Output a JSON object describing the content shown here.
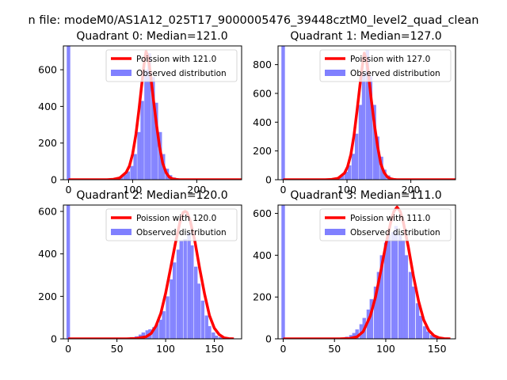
{
  "figure": {
    "suptitle": "n file: modeM0/AS1A12_025T17_9000005476_39448cztM0_level2_quad_clean"
  },
  "colors": {
    "hist": "#8080ff",
    "poisson": "#ff0000",
    "axis": "#000000",
    "background": "#ffffff"
  },
  "chart_data": [
    {
      "type": "bar",
      "title": "Quadrant 0: Median=121.0",
      "xlim": [
        -8,
        270
      ],
      "ylim": [
        0,
        730
      ],
      "xticks": [
        0,
        100,
        200
      ],
      "yticks": [
        0,
        200,
        400,
        600
      ],
      "legend": {
        "position": "top-right",
        "entries": [
          "Poission with 121.0",
          "Observed distribution"
        ]
      },
      "median": 121.0,
      "bin_width": 5.5,
      "zero_bar": 730,
      "hist_x": [
        60,
        66,
        71,
        77,
        82,
        88,
        93,
        99,
        104,
        110,
        115,
        121,
        126,
        132,
        137,
        143,
        148,
        154,
        159,
        165,
        170,
        176,
        181,
        187,
        192
      ],
      "hist_y": [
        3,
        5,
        8,
        12,
        18,
        28,
        45,
        75,
        140,
        260,
        430,
        600,
        690,
        560,
        420,
        260,
        140,
        60,
        25,
        12,
        8,
        5,
        3,
        2,
        1
      ],
      "poisson_x": [
        0,
        60,
        70,
        80,
        90,
        95,
        100,
        105,
        110,
        115,
        118,
        121,
        124,
        127,
        132,
        137,
        142,
        147,
        152,
        157,
        162,
        167,
        172,
        180,
        200,
        270
      ],
      "poisson_y": [
        0,
        0,
        2,
        10,
        40,
        75,
        140,
        245,
        385,
        545,
        635,
        700,
        670,
        600,
        450,
        305,
        180,
        90,
        40,
        15,
        5,
        2,
        0,
        0,
        0,
        0
      ]
    },
    {
      "type": "bar",
      "title": "Quadrant 1: Median=127.0",
      "xlim": [
        -8,
        270
      ],
      "ylim": [
        0,
        930
      ],
      "xticks": [
        0,
        100,
        200
      ],
      "yticks": [
        0,
        200,
        400,
        600,
        800
      ],
      "legend": {
        "position": "top-right",
        "entries": [
          "Poission with 127.0",
          "Observed distribution"
        ]
      },
      "median": 127.0,
      "bin_width": 5.5,
      "zero_bar": 930,
      "hist_x": [
        66,
        71,
        77,
        82,
        88,
        93,
        99,
        104,
        110,
        115,
        121,
        126,
        132,
        137,
        143,
        148,
        154,
        159,
        165,
        170,
        176,
        181,
        187,
        192,
        198
      ],
      "hist_y": [
        3,
        5,
        8,
        12,
        18,
        30,
        55,
        100,
        180,
        320,
        520,
        740,
        900,
        720,
        520,
        300,
        160,
        70,
        30,
        12,
        8,
        5,
        3,
        2,
        1
      ],
      "poisson_x": [
        0,
        66,
        76,
        86,
        96,
        101,
        106,
        111,
        116,
        121,
        124,
        127,
        130,
        133,
        138,
        143,
        148,
        153,
        158,
        163,
        168,
        173,
        178,
        186,
        206,
        270
      ],
      "poisson_y": [
        0,
        0,
        2,
        10,
        45,
        90,
        175,
        310,
        490,
        680,
        790,
        880,
        840,
        760,
        560,
        380,
        230,
        110,
        50,
        20,
        7,
        2,
        0,
        0,
        0,
        0
      ]
    },
    {
      "type": "bar",
      "title": "Quadrant 2: Median=120.0",
      "xlim": [
        -5,
        178
      ],
      "ylim": [
        0,
        630
      ],
      "xticks": [
        0,
        50,
        100,
        150
      ],
      "yticks": [
        0,
        200,
        400,
        600
      ],
      "legend": {
        "position": "top-right",
        "entries": [
          "Poission with 120.0",
          "Observed distribution"
        ]
      },
      "median": 120.0,
      "bin_width": 3.6,
      "zero_bar": 630,
      "hist_x": [
        40,
        50,
        60,
        65,
        70,
        74,
        77,
        81,
        84,
        88,
        91,
        95,
        98,
        102,
        106,
        109,
        113,
        116,
        120,
        124,
        127,
        131,
        134,
        138,
        142,
        145,
        149,
        152,
        156,
        160
      ],
      "hist_y": [
        2,
        3,
        5,
        8,
        12,
        20,
        30,
        40,
        45,
        55,
        70,
        90,
        130,
        200,
        280,
        360,
        420,
        460,
        470,
        500,
        440,
        340,
        260,
        180,
        110,
        60,
        30,
        15,
        8,
        3
      ],
      "poisson_x": [
        0,
        60,
        70,
        80,
        85,
        90,
        95,
        100,
        105,
        110,
        115,
        118,
        120,
        122,
        125,
        130,
        135,
        140,
        145,
        150,
        155,
        160,
        165,
        170
      ],
      "poisson_y": [
        0,
        0,
        2,
        10,
        25,
        60,
        120,
        215,
        330,
        450,
        555,
        595,
        600,
        595,
        560,
        460,
        330,
        210,
        110,
        50,
        20,
        5,
        1,
        0
      ]
    },
    {
      "type": "bar",
      "title": "Quadrant 3: Median=111.0",
      "xlim": [
        -5,
        168
      ],
      "ylim": [
        0,
        640
      ],
      "xticks": [
        0,
        50,
        100,
        150
      ],
      "yticks": [
        0,
        200,
        400,
        600
      ],
      "legend": {
        "position": "top-right",
        "entries": [
          "Poission with 111.0",
          "Observed distribution"
        ]
      },
      "median": 111.0,
      "bin_width": 3.4,
      "zero_bar": 640,
      "hist_x": [
        40,
        50,
        58,
        62,
        66,
        69,
        72,
        76,
        79,
        83,
        86,
        90,
        93,
        96,
        100,
        103,
        107,
        110,
        114,
        117,
        120,
        124,
        127,
        131,
        134,
        138,
        141,
        145,
        148,
        152
      ],
      "hist_y": [
        2,
        3,
        6,
        10,
        18,
        28,
        45,
        70,
        100,
        140,
        190,
        250,
        320,
        400,
        460,
        500,
        510,
        540,
        500,
        470,
        400,
        320,
        250,
        170,
        110,
        60,
        35,
        18,
        8,
        3
      ],
      "poisson_x": [
        0,
        55,
        65,
        72,
        78,
        85,
        90,
        95,
        100,
        105,
        108,
        111,
        114,
        117,
        122,
        127,
        132,
        137,
        142,
        147,
        152,
        157,
        163
      ],
      "poisson_y": [
        0,
        0,
        2,
        10,
        35,
        110,
        200,
        320,
        450,
        560,
        610,
        630,
        610,
        560,
        440,
        300,
        180,
        90,
        40,
        15,
        5,
        1,
        0
      ]
    }
  ]
}
